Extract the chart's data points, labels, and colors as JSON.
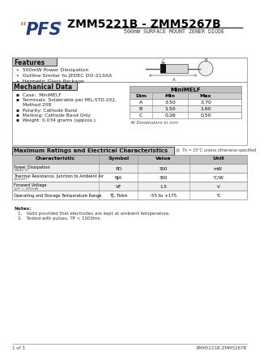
{
  "title": "ZMM5221B - ZMM5267B",
  "subtitle": "500mW SURFACE MOUNT ZENER DIODE",
  "bg_color": "#ffffff",
  "features_title": "Features",
  "features": [
    "500mW Power Dissipation",
    "Outline Similar to JEDEC DO-213AA",
    "Hermetic Glass Package"
  ],
  "mech_title": "Mechanical Data",
  "mech_items": [
    "Case:  MiniMELF",
    "Terminals: Solderable per MIL-STD-202,",
    "    Method 208",
    "Polarity: Cathode Band",
    "Marking: Cathode Band Only",
    "Weight: 0.034 grams (approx.)"
  ],
  "dim_table_title": "MiniMELF",
  "dim_cols": [
    "Dim",
    "Min",
    "Max"
  ],
  "dim_rows": [
    [
      "A",
      "3.50",
      "3.70"
    ],
    [
      "B",
      "1.50",
      "1.60"
    ],
    [
      "C",
      "0.26",
      "0.50"
    ]
  ],
  "dim_note": "All Dimensions in mm",
  "ratings_title": "Maximum Ratings and Electrical Characteristics",
  "ratings_note": "@  TA = 25°C unless otherwise specified",
  "ratings_cols": [
    "Characteristic",
    "Symbol",
    "Value",
    "Unit"
  ],
  "ratings_rows": [
    [
      "Power Dissipation",
      "(Note 1)",
      "PD",
      "500",
      "mW"
    ],
    [
      "Thermal Resistance, Junction to Ambient Air",
      "(≥2mH)",
      "θJA",
      "300",
      "°C/W"
    ],
    [
      "Forward Voltage",
      "@IF = 200mA",
      "VF",
      "1.5",
      "V"
    ],
    [
      "Operating and Storage Temperature Range",
      "",
      "TJ, Tstm",
      "-55 to +175",
      "°C"
    ]
  ],
  "notes_label": "Notes:",
  "notes": [
    "1.   Valid provided that electrodes are kept at ambient temperature.",
    "2.   Tested with pulses, TP < 1000ms."
  ],
  "footer_left": "1 of 3",
  "footer_right": "ZMM5221B-ZMM5267B",
  "orange_color": "#E8761A",
  "blue_color": "#1B3D8F",
  "section_header_bg": "#C8C8C8",
  "table_header_bg": "#C0C0C0",
  "table_alt_bg": "#EEEEEE",
  "border_color": "#999999",
  "text_color": "#111111"
}
